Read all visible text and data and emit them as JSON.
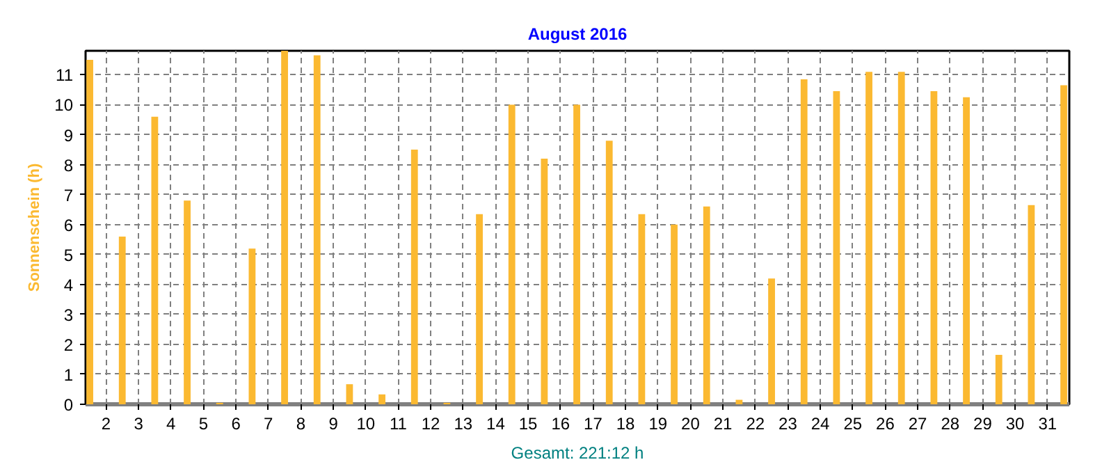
{
  "chart_data": {
    "type": "bar",
    "title": "August 2016",
    "ylabel": "Sonnenschein (h)",
    "annotations": [
      "Gesamt: 221:12 h"
    ],
    "x": [
      1,
      2,
      3,
      4,
      5,
      6,
      7,
      8,
      9,
      10,
      11,
      12,
      13,
      14,
      15,
      16,
      17,
      18,
      19,
      20,
      21,
      22,
      23,
      24,
      25,
      26,
      27,
      28,
      29,
      30,
      31
    ],
    "values": [
      11.5,
      5.6,
      9.6,
      6.8,
      0.05,
      5.2,
      11.8,
      11.65,
      0.67,
      0.33,
      8.5,
      0.05,
      6.35,
      10.0,
      8.2,
      10.0,
      8.8,
      6.35,
      6.0,
      6.6,
      0.15,
      4.2,
      10.85,
      10.45,
      11.1,
      11.1,
      10.45,
      10.25,
      1.65,
      6.65,
      10.65
    ],
    "color": "#fbb931",
    "xlim": [
      0.87,
      31.17
    ],
    "xticks": [
      {
        "value": 1.5,
        "label": "2"
      },
      {
        "value": 2.5,
        "label": "3"
      },
      {
        "value": 3.5,
        "label": "4"
      },
      {
        "value": 4.5,
        "label": "5"
      },
      {
        "value": 5.5,
        "label": "6"
      },
      {
        "value": 6.5,
        "label": "7"
      },
      {
        "value": 7.5,
        "label": "8"
      },
      {
        "value": 8.5,
        "label": "9"
      },
      {
        "value": 9.5,
        "label": "10"
      },
      {
        "value": 10.5,
        "label": "11"
      },
      {
        "value": 11.5,
        "label": "12"
      },
      {
        "value": 12.5,
        "label": "13"
      },
      {
        "value": 13.5,
        "label": "14"
      },
      {
        "value": 14.5,
        "label": "15"
      },
      {
        "value": 15.5,
        "label": "16"
      },
      {
        "value": 16.5,
        "label": "17"
      },
      {
        "value": 17.5,
        "label": "18"
      },
      {
        "value": 18.5,
        "label": "19"
      },
      {
        "value": 19.5,
        "label": "20"
      },
      {
        "value": 20.5,
        "label": "21"
      },
      {
        "value": 21.5,
        "label": "22"
      },
      {
        "value": 22.5,
        "label": "23"
      },
      {
        "value": 23.5,
        "label": "24"
      },
      {
        "value": 24.5,
        "label": "25"
      },
      {
        "value": 25.5,
        "label": "26"
      },
      {
        "value": 26.5,
        "label": "27"
      },
      {
        "value": 27.5,
        "label": "28"
      },
      {
        "value": 28.5,
        "label": "29"
      },
      {
        "value": 29.5,
        "label": "30"
      },
      {
        "value": 30.5,
        "label": "31"
      }
    ],
    "ylim": [
      0,
      11.8
    ],
    "yticks": [
      0,
      1,
      2,
      3,
      4,
      5,
      6,
      7,
      8,
      9,
      10,
      11
    ],
    "grid": true
  }
}
